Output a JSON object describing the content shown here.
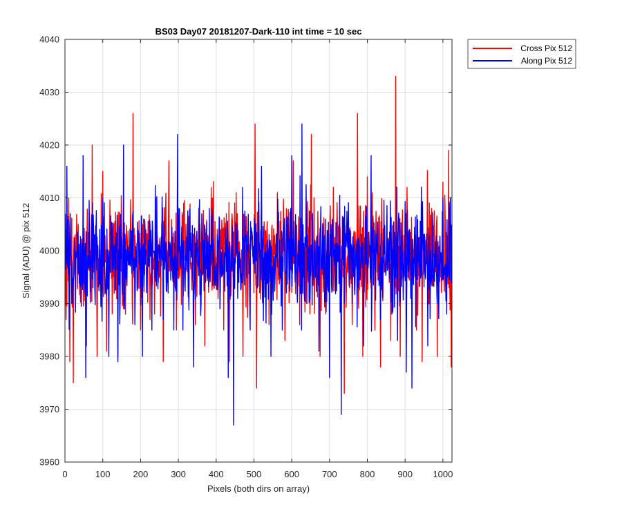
{
  "chart_data": {
    "type": "line",
    "title": "BS03 Day07 20181207-Dark-110 int time = 10 sec",
    "xlabel": "Pixels (both dirs on array)",
    "ylabel": "Signal (ADU) @ pix 512",
    "xlim": [
      0,
      1024
    ],
    "ylim": [
      3960,
      4040
    ],
    "xticks": [
      0,
      100,
      200,
      300,
      400,
      500,
      600,
      700,
      800,
      900,
      1000
    ],
    "yticks": [
      3960,
      3970,
      3980,
      3990,
      4000,
      4010,
      4020,
      4030,
      4040
    ],
    "grid": true,
    "legend_position": "outside-top-right",
    "series": [
      {
        "name": "Cross Pix 512",
        "color": "#ff0000",
        "mean": 3999,
        "noise_range": [
          3973,
          4033
        ],
        "sampled_points": [
          [
            3,
            3987
          ],
          [
            13,
            3979
          ],
          [
            22,
            3975
          ],
          [
            35,
            4005
          ],
          [
            57,
            3982
          ],
          [
            72,
            4020
          ],
          [
            85,
            3980
          ],
          [
            100,
            4015
          ],
          [
            110,
            3981
          ],
          [
            130,
            3992
          ],
          [
            140,
            3980
          ],
          [
            160,
            3988
          ],
          [
            180,
            4026
          ],
          [
            200,
            3985
          ],
          [
            225,
            3987
          ],
          [
            240,
            4010
          ],
          [
            260,
            3979
          ],
          [
            275,
            4017
          ],
          [
            295,
            3985
          ],
          [
            320,
            4005
          ],
          [
            345,
            3986
          ],
          [
            370,
            3982
          ],
          [
            390,
            4010
          ],
          [
            420,
            3985
          ],
          [
            435,
            3979
          ],
          [
            456,
            4007
          ],
          [
            471,
            3980
          ],
          [
            503,
            4024
          ],
          [
            507,
            3974
          ],
          [
            520,
            4009
          ],
          [
            540,
            3986
          ],
          [
            562,
            4011
          ],
          [
            582,
            3983
          ],
          [
            604,
            4017
          ],
          [
            621,
            3986
          ],
          [
            652,
            4022
          ],
          [
            675,
            3980
          ],
          [
            690,
            3988
          ],
          [
            710,
            4012
          ],
          [
            739,
            3973
          ],
          [
            760,
            3986
          ],
          [
            774,
            4026
          ],
          [
            788,
            3980
          ],
          [
            800,
            4014
          ],
          [
            820,
            3985
          ],
          [
            835,
            3978
          ],
          [
            862,
            3983
          ],
          [
            875,
            4033
          ],
          [
            887,
            3980
          ],
          [
            905,
            4012
          ],
          [
            930,
            3985
          ],
          [
            945,
            3979
          ],
          [
            970,
            4008
          ],
          [
            985,
            3980
          ],
          [
            1000,
            4013
          ],
          [
            1015,
            4019
          ],
          [
            1022,
            3978
          ]
        ]
      },
      {
        "name": "Along Pix 512",
        "color": "#0000ff",
        "mean": 3999,
        "noise_range": [
          3967,
          4024
        ],
        "sampled_points": [
          [
            5,
            4016
          ],
          [
            18,
            3990
          ],
          [
            48,
            4018
          ],
          [
            55,
            3976
          ],
          [
            100,
            4010
          ],
          [
            116,
            3980
          ],
          [
            140,
            3979
          ],
          [
            155,
            4020
          ],
          [
            185,
            3986
          ],
          [
            205,
            3980
          ],
          [
            230,
            3985
          ],
          [
            260,
            3987
          ],
          [
            288,
            3985
          ],
          [
            298,
            4022
          ],
          [
            312,
            3985
          ],
          [
            340,
            3978
          ],
          [
            372,
            3994
          ],
          [
            390,
            4008
          ],
          [
            432,
            3976
          ],
          [
            446,
            3967
          ],
          [
            460,
            3994
          ],
          [
            490,
            3985
          ],
          [
            520,
            4016
          ],
          [
            545,
            3980
          ],
          [
            575,
            3985
          ],
          [
            600,
            4018
          ],
          [
            627,
            4024
          ],
          [
            640,
            3990
          ],
          [
            672,
            3981
          ],
          [
            700,
            3976
          ],
          [
            731,
            3969
          ],
          [
            760,
            3990
          ],
          [
            790,
            3982
          ],
          [
            810,
            4018
          ],
          [
            835,
            3987
          ],
          [
            865,
            3988
          ],
          [
            880,
            3983
          ],
          [
            903,
            3977
          ],
          [
            918,
            3974
          ],
          [
            943,
            4012
          ],
          [
            960,
            3982
          ],
          [
            985,
            3990
          ],
          [
            1010,
            3988
          ],
          [
            1020,
            4010
          ]
        ]
      }
    ]
  }
}
